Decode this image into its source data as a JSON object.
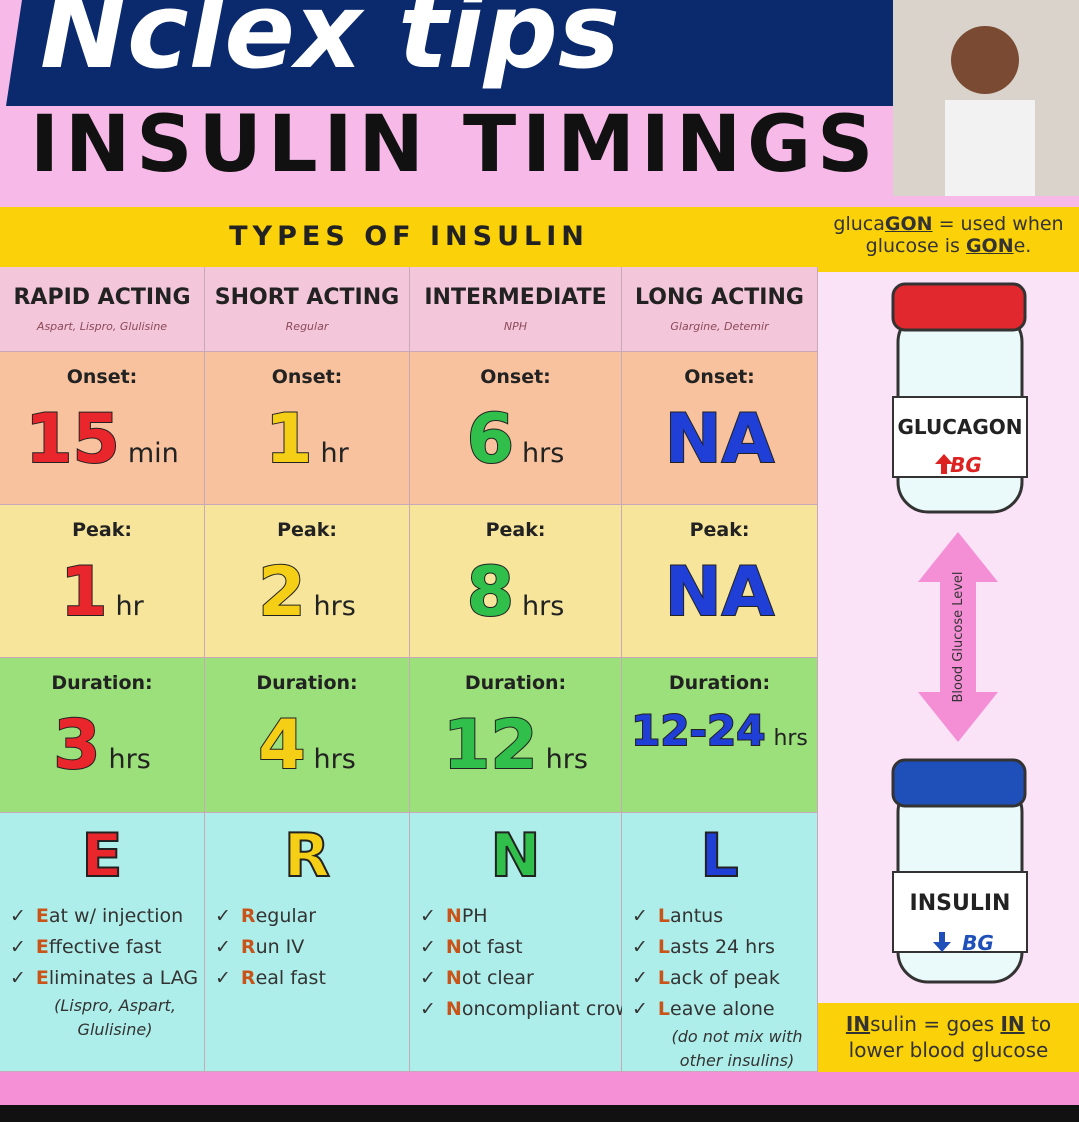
{
  "banner": {
    "title": "Nclex tips"
  },
  "heading": "INSULIN TIMINGS",
  "table": {
    "header": "TYPES OF INSULIN",
    "columns": [
      {
        "name": "RAPID ACTING",
        "examples": "Aspart, Lispro, Glulisine",
        "color": "#e8262b",
        "onset": {
          "label": "Onset:",
          "value": "15",
          "unit": "min"
        },
        "peak": {
          "label": "Peak:",
          "value": "1",
          "unit": "hr"
        },
        "duration": {
          "label": "Duration:",
          "value": "3",
          "unit": "hrs"
        },
        "letter": "E",
        "bullets": [
          {
            "lead": "E",
            "rest": "at w/ injection"
          },
          {
            "lead": "E",
            "rest": "ffective fast"
          },
          {
            "lead": "E",
            "rest": "liminates a LAG"
          }
        ],
        "note": "(Lispro, Aspart, Glulisine)"
      },
      {
        "name": "SHORT ACTING",
        "examples": "Regular",
        "color": "#f5cf16",
        "onset": {
          "label": "Onset:",
          "value": "1",
          "unit": "hr"
        },
        "peak": {
          "label": "Peak:",
          "value": "2",
          "unit": "hrs"
        },
        "duration": {
          "label": "Duration:",
          "value": "4",
          "unit": "hrs"
        },
        "letter": "R",
        "bullets": [
          {
            "lead": "R",
            "rest": "egular"
          },
          {
            "lead": "R",
            "rest": "un IV"
          },
          {
            "lead": "R",
            "rest": "eal fast"
          }
        ]
      },
      {
        "name": "INTERMEDIATE",
        "examples": "NPH",
        "color": "#2fbf4a",
        "onset": {
          "label": "Onset:",
          "value": "6",
          "unit": "hrs"
        },
        "peak": {
          "label": "Peak:",
          "value": "8",
          "unit": "hrs"
        },
        "duration": {
          "label": "Duration:",
          "value": "12",
          "unit": "hrs"
        },
        "letter": "N",
        "bullets": [
          {
            "lead": "N",
            "rest": "PH"
          },
          {
            "lead": "N",
            "rest": "ot fast"
          },
          {
            "lead": "N",
            "rest": "ot clear"
          },
          {
            "lead": "N",
            "rest": "oncompliant crowd"
          }
        ]
      },
      {
        "name": "LONG ACTING",
        "examples": "Glargine, Detemir",
        "color": "#1f3fd6",
        "onset": {
          "label": "Onset:",
          "value": "NA"
        },
        "peak": {
          "label": "Peak:",
          "value": "NA"
        },
        "duration": {
          "label": "Duration:",
          "value": "12-24",
          "unit": "hrs"
        },
        "letter": "L",
        "bullets": [
          {
            "lead": "L",
            "rest": "antus"
          },
          {
            "lead": "L",
            "rest": "asts 24 hrs"
          },
          {
            "lead": "L",
            "rest": "ack of peak"
          },
          {
            "lead": "L",
            "rest": "eave alone"
          }
        ],
        "note": "(do not mix with other insulins)"
      }
    ]
  },
  "side": {
    "top_note": [
      {
        "text": "gluca",
        "bold": false
      },
      {
        "text": "GON",
        "bold": true
      },
      {
        "text": " = used when glucose is ",
        "bold": false
      },
      {
        "text": "GON",
        "bold": true
      },
      {
        "text": "e.",
        "bold": false
      }
    ],
    "glucagon": {
      "label": "GLUCAGON",
      "arrow": "BG"
    },
    "axis": "Blood Glucose Level",
    "insulin": {
      "label": "INSULIN",
      "arrow": "BG"
    },
    "bottom_note": [
      {
        "text": "IN",
        "bold": true
      },
      {
        "text": "sulin = goes ",
        "bold": false
      },
      {
        "text": "IN",
        "bold": true
      },
      {
        "text": " to lower blood glucose",
        "bold": false
      }
    ]
  }
}
